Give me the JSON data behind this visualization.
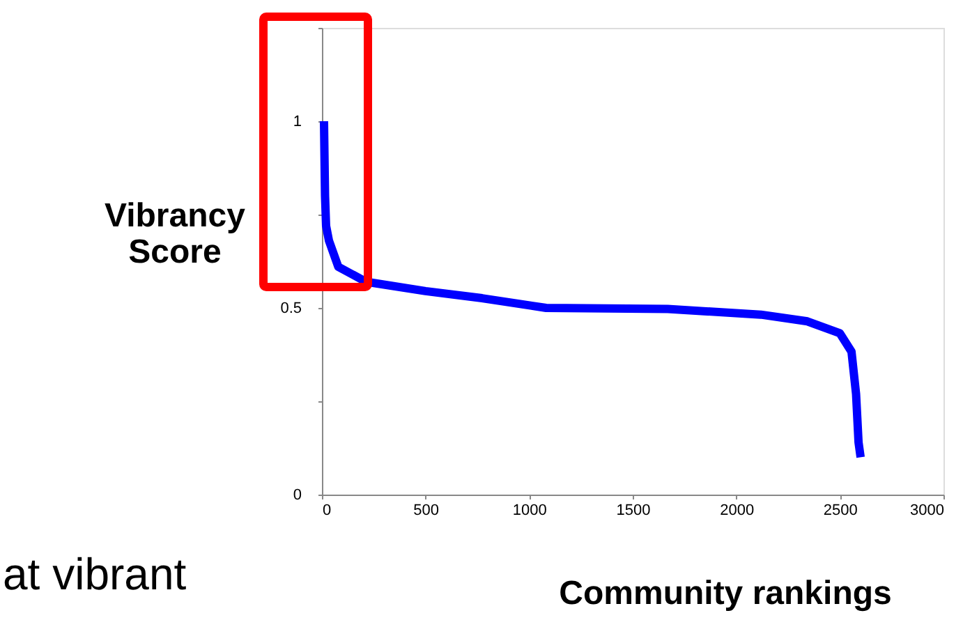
{
  "chart_data": {
    "type": "line",
    "xlabel": "Community rankings",
    "ylabel": "Vibrancy Score",
    "annotations": [
      "at vibrant"
    ],
    "x": [
      10,
      15,
      20,
      34,
      79,
      213,
      500,
      773,
      1082,
      1669,
      2119,
      2343,
      2500,
      2556,
      2578,
      2590,
      2600
    ],
    "series": [
      {
        "color": "#0000ff",
        "values": [
          1,
          0.8,
          0.72,
          0.68,
          0.61,
          0.57,
          0.545,
          0.526,
          0.5,
          0.497,
          0.482,
          0.464,
          0.432,
          0.383,
          0.27,
          0.14,
          0.1
        ]
      }
    ],
    "xlim": [
      0,
      3000
    ],
    "xticks": [
      0,
      500,
      1000,
      1500,
      2000,
      2500,
      3000
    ],
    "ylim": [
      0,
      1.25
    ],
    "yticks": [
      0,
      {
        "value": 0.25,
        "label": null
      },
      0.5,
      {
        "value": 0.75,
        "label": null
      },
      1,
      {
        "value": 1.25,
        "label": null
      }
    ],
    "grid": false,
    "marker": "none",
    "line_style": "solid"
  }
}
